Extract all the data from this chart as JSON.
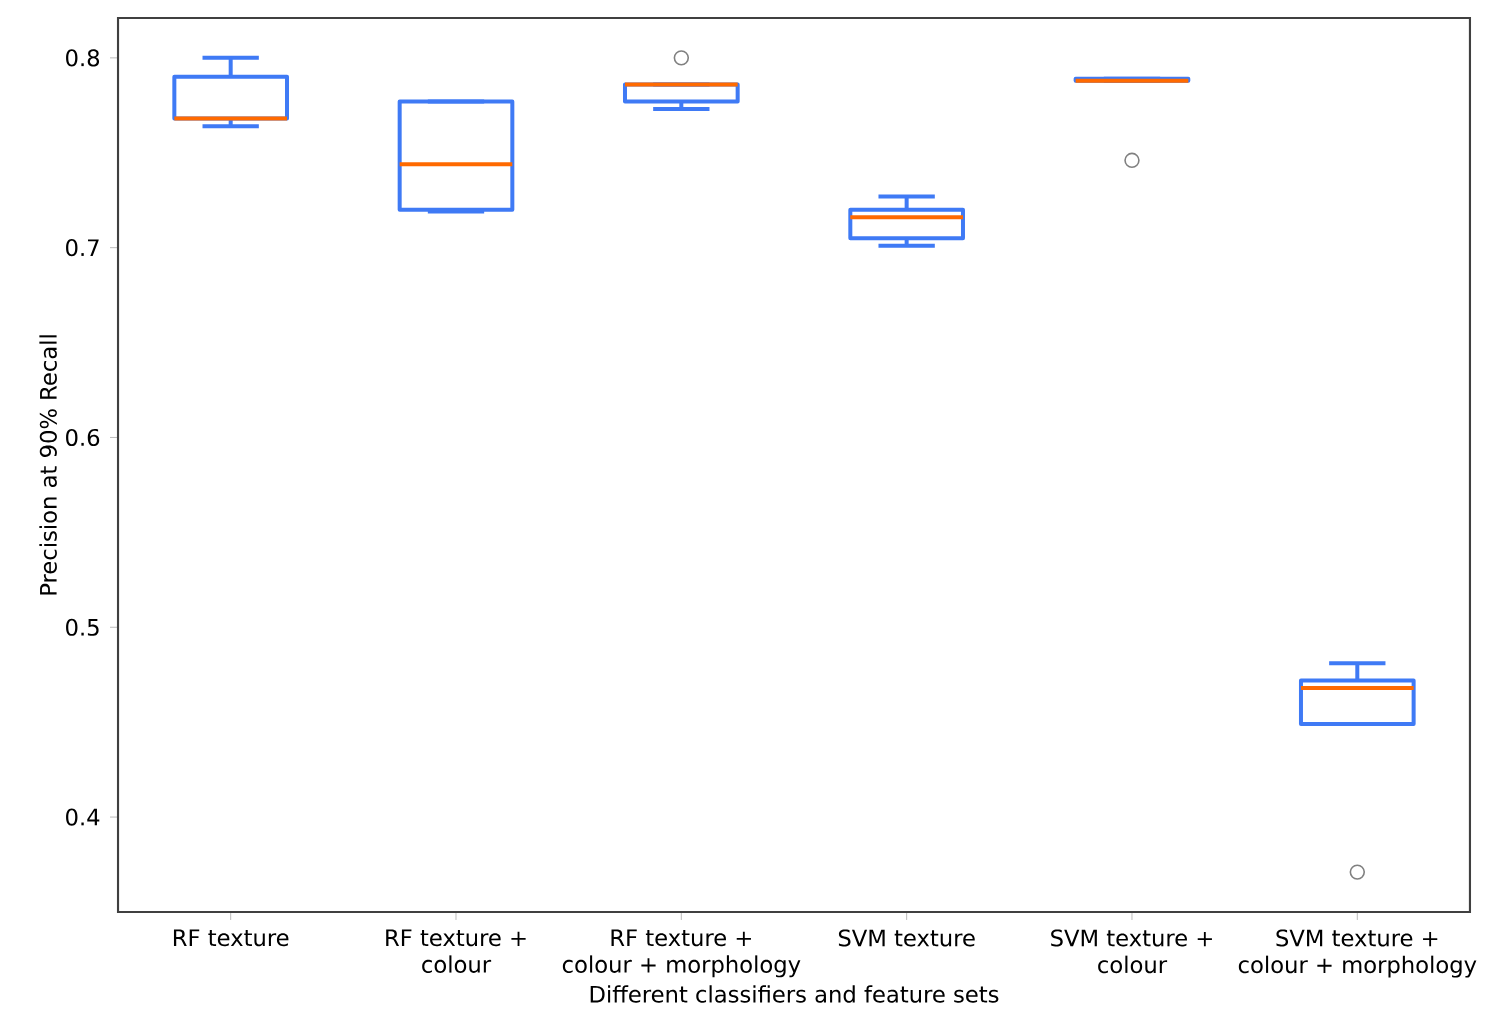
{
  "chart_data": {
    "type": "box",
    "xlabel": "Different classifiers and feature sets",
    "ylabel": "Precision at 90% Recall",
    "categories": [
      "RF texture",
      "RF texture +\ncolour",
      "RF texture +\ncolour + morphology",
      "SVM texture",
      "SVM texture +\ncolour",
      "SVM texture +\ncolour + morphology"
    ],
    "series": [
      {
        "color": "#3f7af5",
        "boxes": [
          {
            "low": 0.764,
            "q1": 0.768,
            "median": 0.768,
            "q3": 0.79,
            "high": 0.8
          },
          {
            "low": 0.719,
            "q1": 0.72,
            "median": 0.744,
            "q3": 0.777,
            "high": 0.777
          },
          {
            "low": 0.773,
            "q1": 0.777,
            "median": 0.786,
            "q3": 0.786,
            "high": 0.786,
            "outliers": [
              0.8
            ]
          },
          {
            "low": 0.701,
            "q1": 0.705,
            "median": 0.716,
            "q3": 0.72,
            "high": 0.727
          },
          {
            "low": 0.788,
            "q1": 0.788,
            "median": 0.788,
            "q3": 0.789,
            "high": 0.789,
            "outliers": [
              0.746
            ]
          },
          {
            "low": 0.449,
            "q1": 0.449,
            "median": 0.468,
            "q3": 0.472,
            "high": 0.481,
            "outliers": [
              0.371
            ]
          }
        ]
      }
    ],
    "ylim": [
      0.35,
      0.821
    ],
    "yticks": [
      0.4,
      0.5,
      0.6,
      0.7,
      0.8
    ]
  }
}
